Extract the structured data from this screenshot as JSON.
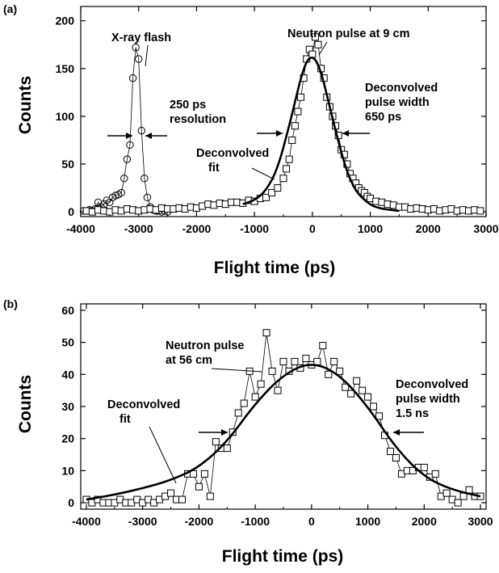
{
  "chart_data": [
    {
      "panel": "(a)",
      "type": "scatter",
      "xlabel": "Flight time (ps)",
      "ylabel": "Counts",
      "xlim": [
        -4000,
        3000
      ],
      "ylim": [
        -5,
        215
      ],
      "xticks": [
        -4000,
        -3000,
        -2000,
        -1000,
        0,
        1000,
        2000,
        3000
      ],
      "yticks": [
        0,
        50,
        100,
        150,
        200
      ],
      "series": [
        {
          "name": "X-ray flash",
          "marker": "circle",
          "x": [
            -3950,
            -3900,
            -3850,
            -3800,
            -3750,
            -3700,
            -3650,
            -3600,
            -3550,
            -3500,
            -3450,
            -3400,
            -3350,
            -3300,
            -3250,
            -3200,
            -3150,
            -3100,
            -3050,
            -3000,
            -2950,
            -2900,
            -2850,
            -2800,
            -2750,
            -2700,
            -2650,
            -2600,
            -2550,
            -2500
          ],
          "values": [
            1,
            1,
            2,
            1,
            3,
            10,
            5,
            8,
            12,
            10,
            15,
            17,
            18,
            20,
            35,
            55,
            70,
            140,
            172,
            160,
            85,
            35,
            15,
            5,
            2,
            1,
            1,
            0,
            1,
            0
          ]
        },
        {
          "name": "Neutron pulse at 9 cm",
          "marker": "square",
          "x": [
            -3900,
            -3800,
            -3700,
            -3600,
            -3500,
            -3400,
            -3300,
            -3200,
            -3100,
            -3000,
            -2900,
            -2800,
            -2700,
            -2600,
            -2500,
            -2400,
            -2300,
            -2200,
            -2100,
            -2000,
            -1900,
            -1800,
            -1700,
            -1600,
            -1500,
            -1400,
            -1300,
            -1200,
            -1100,
            -1000,
            -900,
            -800,
            -700,
            -600,
            -500,
            -450,
            -400,
            -350,
            -300,
            -250,
            -200,
            -150,
            -100,
            -50,
            0,
            50,
            100,
            150,
            200,
            250,
            300,
            350,
            400,
            450,
            500,
            550,
            600,
            650,
            700,
            750,
            800,
            850,
            900,
            950,
            1000,
            1100,
            1200,
            1300,
            1400,
            1500,
            1600,
            1700,
            1800,
            1900,
            2000,
            2100,
            2200,
            2300,
            2400,
            2500,
            2600,
            2700,
            2800,
            2900
          ],
          "values": [
            1,
            0,
            2,
            1,
            0,
            2,
            1,
            3,
            2,
            1,
            2,
            3,
            2,
            4,
            3,
            3,
            4,
            3,
            5,
            4,
            6,
            8,
            7,
            9,
            8,
            10,
            10,
            9,
            12,
            11,
            14,
            15,
            20,
            25,
            35,
            45,
            55,
            75,
            90,
            105,
            120,
            140,
            160,
            170,
            165,
            183,
            175,
            150,
            140,
            120,
            110,
            100,
            90,
            80,
            65,
            60,
            50,
            40,
            35,
            30,
            25,
            22,
            20,
            16,
            14,
            11,
            10,
            8,
            7,
            5,
            5,
            3,
            4,
            3,
            2,
            3,
            1,
            2,
            3,
            1,
            2,
            1,
            2,
            1
          ]
        },
        {
          "name": "Deconvolved fit",
          "line": true,
          "x": [
            -1200,
            -1000,
            -800,
            -600,
            -400,
            -300,
            -200,
            -100,
            0,
            100,
            200,
            300,
            400,
            500,
            600,
            700,
            800,
            1000,
            1200,
            1500
          ],
          "values": [
            8,
            12,
            22,
            45,
            90,
            115,
            140,
            158,
            163,
            155,
            135,
            110,
            85,
            62,
            42,
            28,
            18,
            7,
            3,
            1
          ]
        }
      ],
      "annotations": {
        "xray": "X-ray flash",
        "resolution_1": "250 ps",
        "resolution_2": "resolution",
        "neutron": "Neutron pulse at 9 cm",
        "deconv_1": "Deconvolved",
        "deconv_2": "pulse width",
        "deconv_3": "650 ps",
        "fit_1": "Deconvolved",
        "fit_2": "fit"
      }
    },
    {
      "panel": "(b)",
      "type": "scatter",
      "xlabel": "Flight time (ps)",
      "ylabel": "Counts",
      "xlim": [
        -4100,
        3100
      ],
      "ylim": [
        -2,
        62
      ],
      "xticks": [
        -4000,
        -3000,
        -2000,
        -1000,
        0,
        1000,
        2000,
        3000
      ],
      "yticks": [
        0,
        10,
        20,
        30,
        40,
        50,
        60
      ],
      "series": [
        {
          "name": "Neutron pulse at 56 cm",
          "marker": "square",
          "x": [
            -4000,
            -3900,
            -3800,
            -3700,
            -3600,
            -3500,
            -3400,
            -3300,
            -3200,
            -3100,
            -3000,
            -2900,
            -2800,
            -2700,
            -2600,
            -2500,
            -2400,
            -2300,
            -2200,
            -2100,
            -2000,
            -1900,
            -1800,
            -1700,
            -1600,
            -1500,
            -1400,
            -1300,
            -1200,
            -1100,
            -1000,
            -900,
            -800,
            -700,
            -600,
            -500,
            -400,
            -300,
            -200,
            -100,
            0,
            100,
            200,
            300,
            400,
            500,
            600,
            700,
            800,
            900,
            1000,
            1100,
            1200,
            1300,
            1400,
            1500,
            1600,
            1700,
            1800,
            1900,
            2000,
            2100,
            2200,
            2300,
            2400,
            2500,
            2600,
            2700,
            2800,
            2900,
            3000
          ],
          "values": [
            1,
            0,
            1,
            0,
            0,
            0,
            1,
            0,
            0,
            1,
            0,
            1,
            0,
            1,
            2,
            3,
            1,
            1,
            9,
            9,
            5,
            9,
            2,
            19,
            17,
            17,
            22,
            28,
            31,
            41,
            33,
            37,
            53,
            41,
            35,
            44,
            41,
            44,
            42,
            45,
            43,
            44,
            49,
            40,
            44,
            41,
            36,
            34,
            38,
            35,
            33,
            30,
            27,
            21,
            16,
            14,
            9,
            10,
            10,
            11,
            11,
            8,
            9,
            2,
            3,
            1,
            0,
            2,
            4,
            2,
            2
          ]
        },
        {
          "name": "Deconvolved fit",
          "line": true,
          "x": [
            -4000,
            -3500,
            -3000,
            -2500,
            -2000,
            -1500,
            -1000,
            -500,
            0,
            500,
            1000,
            1500,
            2000,
            2500,
            3000
          ],
          "values": [
            1,
            2.5,
            4.5,
            7,
            11,
            19,
            31,
            40,
            44,
            40,
            30,
            17,
            8,
            4,
            2
          ]
        }
      ],
      "annotations": {
        "neutron_1": "Neutron pulse",
        "neutron_2": "at 56 cm",
        "deconv_1": "Deconvolved",
        "deconv_2": "pulse width",
        "deconv_3": "1.5 ns",
        "fit_1": "Deconvolved",
        "fit_2": "fit"
      }
    }
  ]
}
